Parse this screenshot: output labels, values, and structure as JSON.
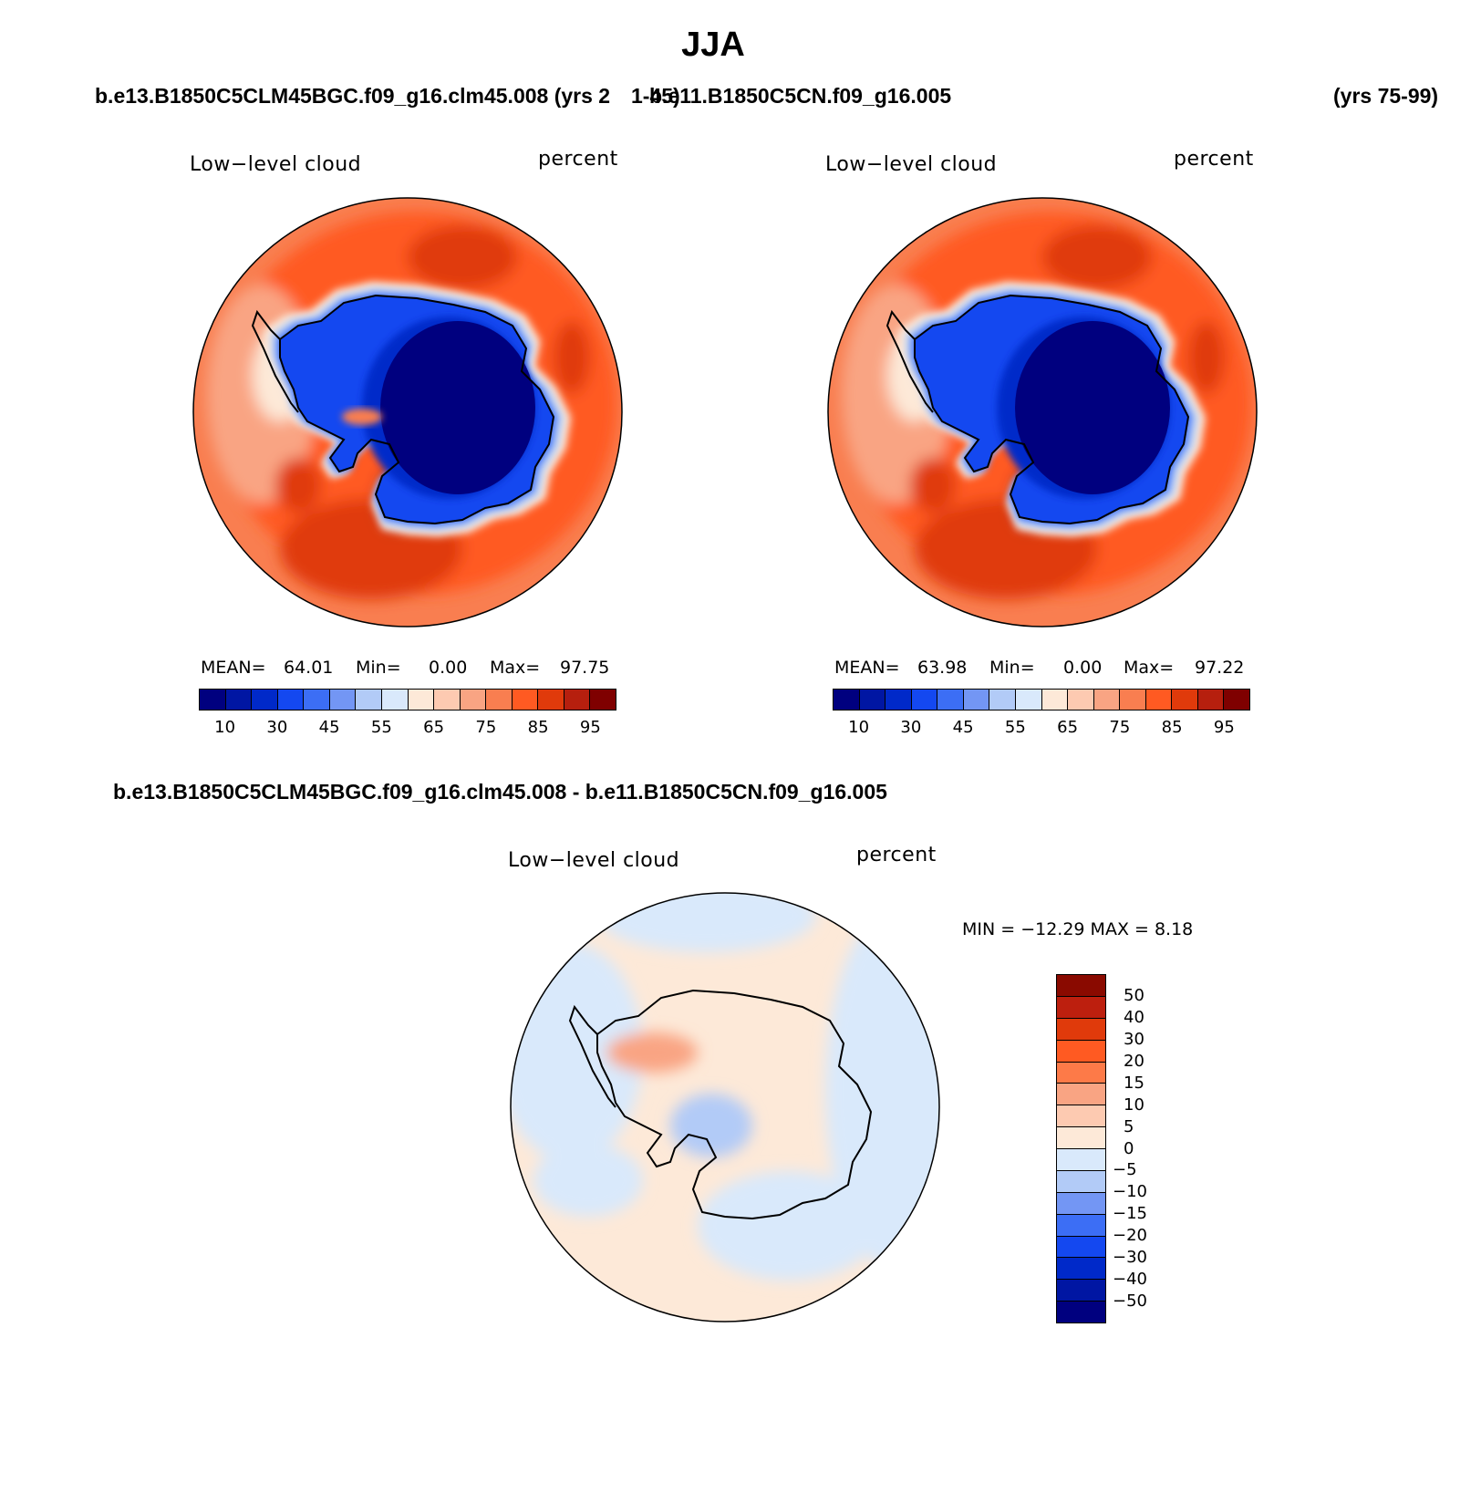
{
  "figure": {
    "season": "JJA",
    "case1": "b.e13.B1850C5CLM45BGC.f09_g16.clm45.008 (yrs 21-45)",
    "case1_name": "b.e13.B1850C5CLM45BGC.f09_g16.clm45.008 (yrs 2",
    "case1_overlap": "1-45)",
    "case2_name": "b.e11.B1850C5CN.f09_g16.005",
    "case2_yrs": "(yrs 75-99)",
    "diff_title": "b.e13.B1850C5CLM45BGC.f09_g16.clm45.008 - b.e11.B1850C5CN.f09_g16.005"
  },
  "panels": {
    "left": {
      "variable": "Low−level cloud",
      "units": "percent",
      "mean_label": "MEAN=",
      "mean": "64.01",
      "min_label": "Min=",
      "min": "0.00",
      "max_label": "Max=",
      "max": "97.75"
    },
    "right": {
      "variable": "Low−level cloud",
      "units": "percent",
      "mean_label": "MEAN=",
      "mean": "63.98",
      "min_label": "Min=",
      "min": "0.00",
      "max_label": "Max=",
      "max": "97.22"
    },
    "diff": {
      "variable": "Low−level cloud",
      "units": "percent",
      "minmax": "MIN = −12.29  MAX =    8.18"
    }
  },
  "colorbars": {
    "abs_colors": [
      "#00007f",
      "#0016a3",
      "#0029c9",
      "#1448f0",
      "#3c6ef5",
      "#7396f4",
      "#b2cbf7",
      "#d9e9fb",
      "#fde9d8",
      "#fdcab1",
      "#f9a483",
      "#f97e50",
      "#ff5a22",
      "#e03a0b",
      "#b61f0e",
      "#7f0000"
    ],
    "abs_ticks": [
      "10",
      "30",
      "45",
      "55",
      "65",
      "75",
      "85",
      "95"
    ],
    "diff_colors": [
      "#8a0a00",
      "#bd1f0e",
      "#e03a0b",
      "#ff5a22",
      "#fd7a48",
      "#f9a483",
      "#fdcab1",
      "#fde9d8",
      "#d9e9fb",
      "#b2cbf7",
      "#7396f4",
      "#3c6ef5",
      "#1448f0",
      "#0029c9",
      "#0016a3",
      "#00007f"
    ],
    "diff_ticks": [
      "50",
      "40",
      "30",
      "20",
      "15",
      "10",
      "5",
      "0",
      "−5",
      "−10",
      "−15",
      "−20",
      "−30",
      "−40",
      "−50"
    ]
  }
}
